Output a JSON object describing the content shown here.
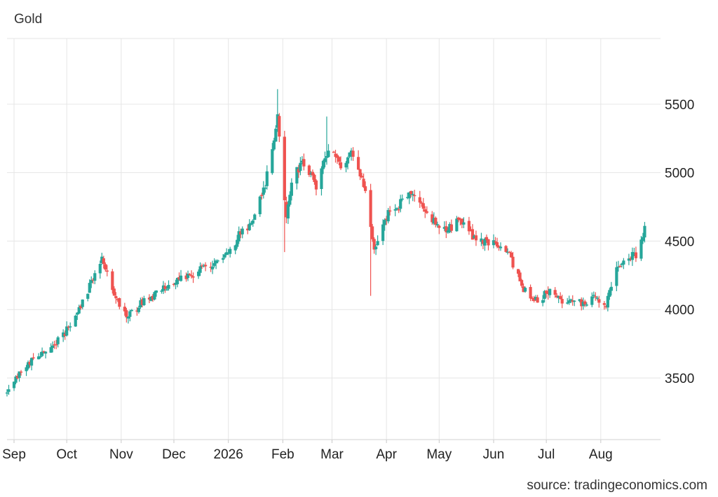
{
  "chart_data": {
    "type": "candlestick",
    "title": "Gold",
    "source": "source: tradingeconomics.com",
    "xlabel": "",
    "ylabel": "",
    "ylim": [
      3050,
      5980
    ],
    "y_ticks": [
      3500,
      4000,
      4500,
      5000,
      5500
    ],
    "y_tick_labels": [
      "3500",
      "4000",
      "4500",
      "5000",
      "5500"
    ],
    "x_ticks": [
      "2025-09-01",
      "2025-10-01",
      "2025-11-01",
      "2025-12-01",
      "2026-01-01",
      "2026-02-01",
      "2026-03-01",
      "2026-04-01",
      "2026-05-01",
      "2026-06-01",
      "2026-07-01",
      "2026-08-01"
    ],
    "x_tick_labels": [
      "Sep",
      "Oct",
      "Nov",
      "Dec",
      "2026",
      "Feb",
      "Mar",
      "Apr",
      "May",
      "Jun",
      "Jul",
      "Aug"
    ],
    "x_range": [
      "2025-08-28",
      "2026-09-04"
    ],
    "grid": true,
    "up_color": "#26a69a",
    "down_color": "#ef5350",
    "grid_color": "#e6e6e6",
    "series": [
      {
        "key_dates": [
          "2025-08-28",
          "2025-09-05",
          "2025-09-12",
          "2025-09-20",
          "2025-09-30",
          "2025-10-08",
          "2025-10-15",
          "2025-10-21",
          "2025-10-28",
          "2025-11-05",
          "2025-11-13",
          "2025-11-20",
          "2025-12-01",
          "2025-12-12",
          "2025-12-22",
          "2025-12-31",
          "2026-01-08",
          "2026-01-15",
          "2026-01-22",
          "2026-01-29",
          "2026-02-03",
          "2026-02-06",
          "2026-02-12",
          "2026-02-20",
          "2026-02-27",
          "2026-03-05",
          "2026-03-12",
          "2026-03-20",
          "2026-03-25",
          "2026-04-02",
          "2026-04-10",
          "2026-04-17",
          "2026-04-25",
          "2026-05-05",
          "2026-05-13",
          "2026-05-20",
          "2026-05-30",
          "2026-06-10",
          "2026-06-18",
          "2026-06-26",
          "2026-07-03",
          "2026-07-10",
          "2026-07-20",
          "2026-07-28",
          "2026-08-04",
          "2026-08-10",
          "2026-08-17",
          "2026-08-20",
          "2026-08-21",
          "2026-08-24",
          "2026-08-26"
        ],
        "key_closes": [
          3380,
          3560,
          3650,
          3680,
          3830,
          4000,
          4200,
          4380,
          4100,
          3950,
          4050,
          4100,
          4210,
          4260,
          4330,
          4400,
          4560,
          4650,
          4900,
          5400,
          4650,
          4950,
          5080,
          4900,
          5200,
          5050,
          5150,
          4900,
          4450,
          4700,
          4780,
          4850,
          4680,
          4580,
          4650,
          4530,
          4500,
          4400,
          4150,
          4050,
          4150,
          4050,
          4050,
          4080,
          4050,
          4300,
          4380,
          4420,
          4380,
          4520,
          4600
        ],
        "spikes": [
          {
            "date": "2026-01-29",
            "high": 5610,
            "low": 5300
          },
          {
            "date": "2026-02-02",
            "high": 5200,
            "low": 4420
          },
          {
            "date": "2026-02-26",
            "high": 5410,
            "low": 5150
          },
          {
            "date": "2026-03-23",
            "high": 4520,
            "low": 4100
          },
          {
            "date": "2025-10-22",
            "high": 4390,
            "low": 4300
          },
          {
            "date": "2026-08-26",
            "high": 4640,
            "low": 4520
          }
        ]
      }
    ]
  }
}
